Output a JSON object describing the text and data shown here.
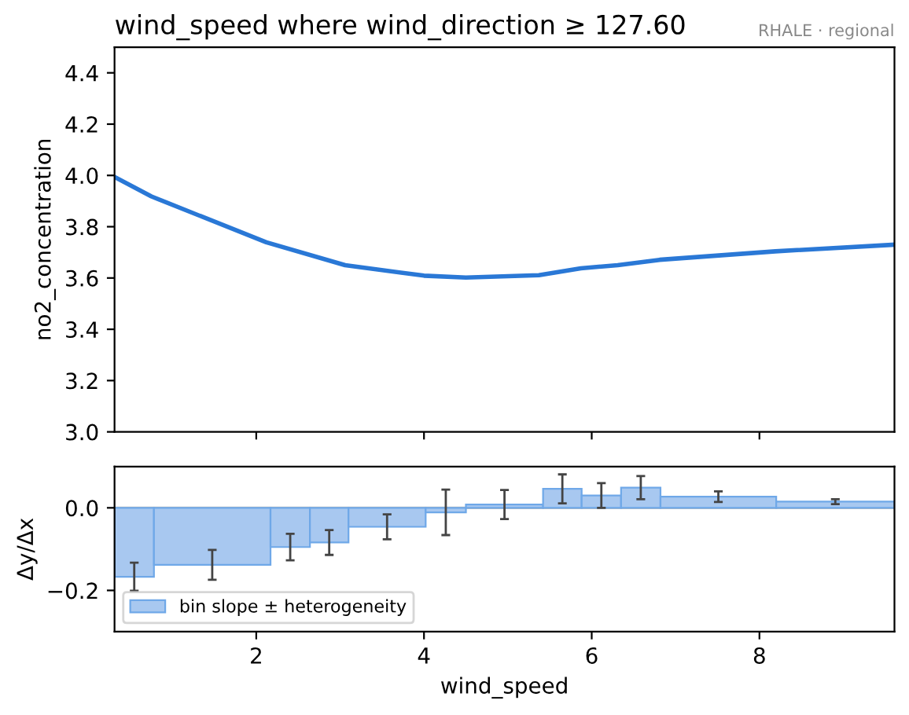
{
  "chart_data": [
    {
      "type": "line",
      "title": "wind_speed where wind_direction ≥ 127.60",
      "ylabel": "no2_concentration",
      "annotations": [
        "RHALE · regional"
      ],
      "series": [
        {
          "color": "#2a78d6",
          "x": [
            0.31,
            0.75,
            2.12,
            3.06,
            4.0,
            4.5,
            5.37,
            5.87,
            6.31,
            6.81,
            8.19,
            9.61
          ],
          "values": [
            3.994,
            3.918,
            3.739,
            3.65,
            3.609,
            3.602,
            3.611,
            3.638,
            3.65,
            3.671,
            3.704,
            3.73
          ]
        }
      ],
      "xlim": [
        0.31,
        9.61
      ],
      "ylim": [
        3.0,
        4.5
      ],
      "yticks": [
        {
          "value": 3.0,
          "label": "3.0"
        },
        3.2,
        3.4,
        3.6,
        3.8,
        {
          "value": 4.0,
          "label": "4.0"
        },
        4.2,
        4.4
      ],
      "tick_labels": "y",
      "grid": false,
      "legend": false
    },
    {
      "type": "histogram",
      "xlabel": "wind_speed",
      "ylabel": "Δy/Δx",
      "bins": [
        0.31,
        0.78,
        2.17,
        2.64,
        3.1,
        4.02,
        4.5,
        5.42,
        5.88,
        6.35,
        6.82,
        8.2,
        9.61
      ],
      "series": [
        {
          "name": "bin slope ± heterogeneity",
          "color": "#a8c8f0",
          "values": [
            -0.167,
            -0.138,
            -0.095,
            -0.084,
            -0.046,
            -0.011,
            0.008,
            0.046,
            0.03,
            0.049,
            0.027,
            0.015
          ],
          "errors": [
            0.034,
            0.036,
            0.032,
            0.03,
            0.03,
            0.055,
            0.035,
            0.035,
            0.03,
            0.028,
            0.013,
            0.006
          ]
        }
      ],
      "ref_lines": [
        {
          "axis": "y",
          "value": 0,
          "color": "#c8c2b8"
        }
      ],
      "xlim": [
        0.31,
        9.61
      ],
      "ylim": [
        -0.3,
        0.1
      ],
      "xticks": [
        2,
        4,
        6,
        8
      ],
      "yticks": [
        {
          "value": -0.2,
          "label": "−0.2"
        },
        {
          "value": 0.0,
          "label": "0.0"
        }
      ],
      "grid": false,
      "legend": "bottom left"
    }
  ]
}
